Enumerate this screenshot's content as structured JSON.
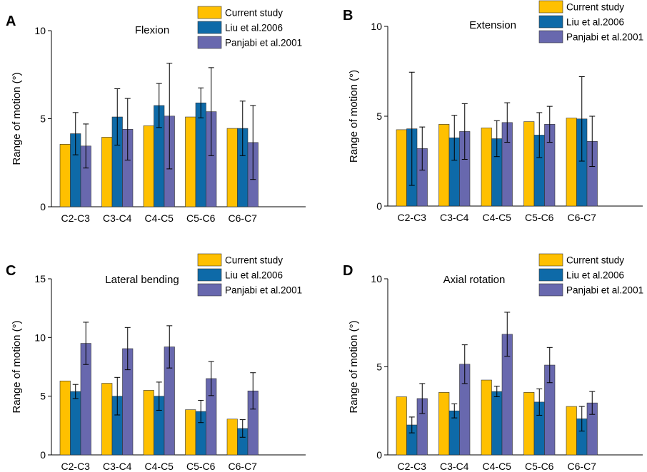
{
  "figure": {
    "colors": {
      "current": "#FFC000",
      "liu": "#0E6AA8",
      "panjabi": "#6868AE",
      "bar_edge": "#333333"
    }
  },
  "chart_data": [
    {
      "type": "bar",
      "panel": "A",
      "title": "Flexion",
      "ylabel": "Range of motion (°)",
      "xlabel": "",
      "ylim": [
        0,
        10
      ],
      "yticks": [
        0,
        5,
        10
      ],
      "categories": [
        "C2-C3",
        "C3-C4",
        "C4-C5",
        "C5-C6",
        "C6-C7"
      ],
      "legend_position": "top-right",
      "series": [
        {
          "name": "Current study",
          "values": [
            3.55,
            3.95,
            4.6,
            5.1,
            4.45
          ],
          "errors": [
            0,
            0,
            0,
            0,
            0
          ]
        },
        {
          "name": "Liu et al.2006",
          "values": [
            4.15,
            5.1,
            5.75,
            5.9,
            4.45
          ],
          "errors": [
            1.2,
            1.6,
            1.25,
            0.85,
            1.55
          ]
        },
        {
          "name": "Panjabi et al.2001",
          "values": [
            3.45,
            4.4,
            5.15,
            5.4,
            3.65
          ],
          "errors": [
            1.25,
            1.75,
            3.0,
            2.5,
            2.1
          ]
        }
      ]
    },
    {
      "type": "bar",
      "panel": "B",
      "title": "Extension",
      "ylabel": "Range of motion (°)",
      "xlabel": "",
      "ylim": [
        0,
        10
      ],
      "yticks": [
        0,
        5,
        10
      ],
      "categories": [
        "C2-C3",
        "C3-C4",
        "C4-C5",
        "C5-C6",
        "C6-C7"
      ],
      "legend_position": "top-right",
      "series": [
        {
          "name": "Current study",
          "values": [
            4.25,
            4.55,
            4.35,
            4.7,
            4.9
          ],
          "errors": [
            0,
            0,
            0,
            0,
            0
          ]
        },
        {
          "name": "Liu et al.2006",
          "values": [
            4.3,
            3.8,
            3.75,
            3.95,
            4.85
          ],
          "errors": [
            3.15,
            1.25,
            1.0,
            1.25,
            2.35
          ]
        },
        {
          "name": "Panjabi et al.2001",
          "values": [
            3.2,
            4.15,
            4.65,
            4.55,
            3.6
          ],
          "errors": [
            1.2,
            1.55,
            1.1,
            1.0,
            1.4
          ]
        }
      ]
    },
    {
      "type": "bar",
      "panel": "C",
      "title": "Lateral bending",
      "ylabel": "Range of motion (°)",
      "xlabel": "",
      "ylim": [
        0,
        15
      ],
      "yticks": [
        0,
        5,
        10,
        15
      ],
      "categories": [
        "C2-C3",
        "C3-C4",
        "C4-C5",
        "C5-C6",
        "C6-C7"
      ],
      "legend_position": "top-right",
      "series": [
        {
          "name": "Current study",
          "values": [
            6.3,
            6.1,
            5.5,
            3.85,
            3.05
          ],
          "errors": [
            0,
            0,
            0,
            0,
            0
          ]
        },
        {
          "name": "Liu et al.2006",
          "values": [
            5.4,
            5.0,
            5.0,
            3.7,
            2.25
          ],
          "errors": [
            0.6,
            1.6,
            1.2,
            0.95,
            0.75
          ]
        },
        {
          "name": "Panjabi et al.2001",
          "values": [
            9.5,
            9.05,
            9.2,
            6.5,
            5.45
          ],
          "errors": [
            1.8,
            1.8,
            1.8,
            1.45,
            1.55
          ]
        }
      ]
    },
    {
      "type": "bar",
      "panel": "D",
      "title": "Axial rotation",
      "ylabel": "Range of motion (°)",
      "xlabel": "",
      "ylim": [
        0,
        10
      ],
      "yticks": [
        0,
        5,
        10
      ],
      "categories": [
        "C2-C3",
        "C3-C4",
        "C4-C5",
        "C5-C6",
        "C6-C7"
      ],
      "legend_position": "top-right",
      "series": [
        {
          "name": "Current study",
          "values": [
            3.3,
            3.55,
            4.25,
            3.55,
            2.75
          ],
          "errors": [
            0,
            0,
            0,
            0,
            0
          ]
        },
        {
          "name": "Liu et al.2006",
          "values": [
            1.7,
            2.5,
            3.6,
            3.0,
            2.05
          ],
          "errors": [
            0.45,
            0.4,
            0.3,
            0.75,
            0.7
          ]
        },
        {
          "name": "Panjabi et al.2001",
          "values": [
            3.2,
            5.15,
            6.85,
            5.1,
            2.95
          ],
          "errors": [
            0.85,
            1.1,
            1.25,
            1.0,
            0.65
          ]
        }
      ]
    }
  ]
}
